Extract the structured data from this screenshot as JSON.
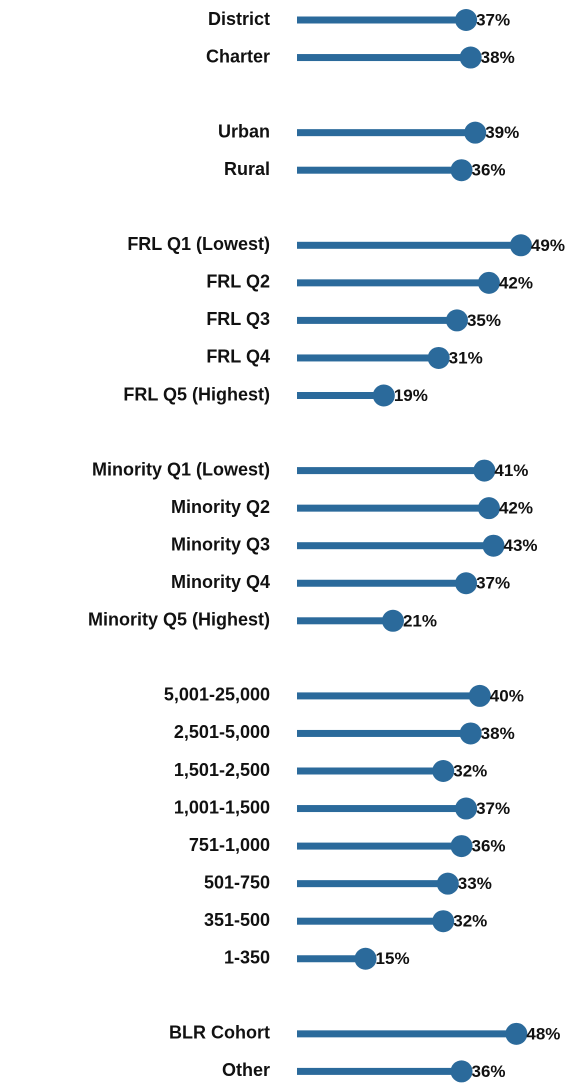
{
  "chart_data": {
    "type": "lollipop",
    "categories": [
      "District",
      "Charter",
      null,
      "Urban",
      "Rural",
      null,
      "FRL Q1 (Lowest)",
      "FRL Q2",
      "FRL Q3",
      "FRL Q4",
      "FRL Q5 (Highest)",
      null,
      "Minority Q1 (Lowest)",
      "Minority Q2",
      "Minority Q3",
      "Minority Q4",
      "Minority Q5 (Highest)",
      null,
      "5,001-25,000",
      "2,501-5,000",
      "1,501-2,500",
      "1,001-1,500",
      "751-1,000",
      "501-750",
      "351-500",
      "1-350",
      null,
      "BLR Cohort",
      "Other"
    ],
    "values": [
      37,
      38,
      null,
      39,
      36,
      null,
      49,
      42,
      35,
      31,
      19,
      null,
      41,
      42,
      43,
      37,
      21,
      null,
      40,
      38,
      32,
      37,
      36,
      33,
      32,
      15,
      null,
      48,
      36
    ],
    "value_labels": [
      "37%",
      "38%",
      null,
      "39%",
      "36%",
      null,
      "49%",
      "42%",
      "35%",
      "31%",
      "19%",
      null,
      "41%",
      "42%",
      "43%",
      "37%",
      "21%",
      null,
      "40%",
      "38%",
      "32%",
      "37%",
      "36%",
      "33%",
      "32%",
      "15%",
      null,
      "48%",
      "36%"
    ],
    "xlim": [
      0,
      100
    ],
    "color": "#2b6a9b"
  }
}
